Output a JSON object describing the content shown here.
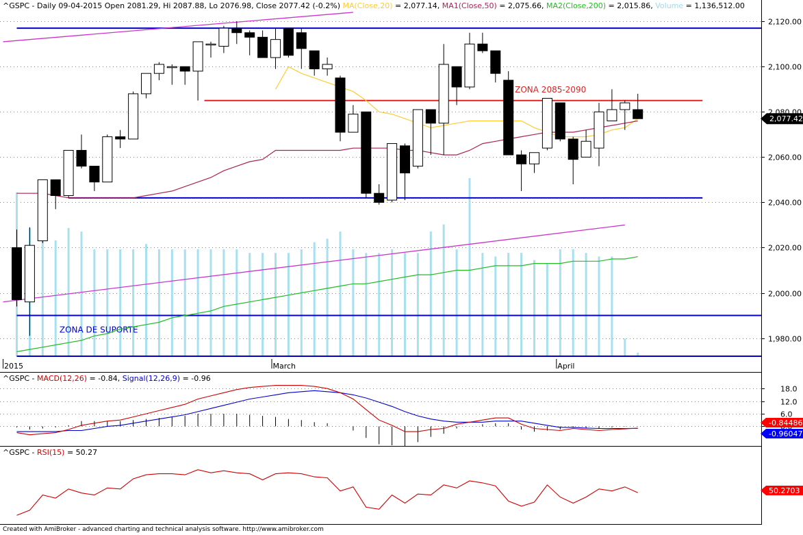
{
  "colors": {
    "background": "#ffffff",
    "axis": "#000000",
    "grid": "#808080",
    "ma20": "#ffcc33",
    "ma50": "#aa2255",
    "ma200": "#22bb22",
    "volume": "#a8e0f0",
    "volume_label": "#a0d8ef",
    "resistance": "#dd2222",
    "support_blue": "#0000cc",
    "channel": "#cc33cc",
    "macd": "#cc0000",
    "signal": "#0000cc",
    "rsi": "#cc0000",
    "histogram": "#000000",
    "price_tag": "#000000",
    "macd_tag": "#ff0000",
    "signal_tag": "#0000ff",
    "rsi_tag": "#ff0000"
  },
  "header": {
    "main": {
      "prefix": "^GSPC - Daily 09-04-2015 Open 2081.29, Hi 2087.88, Lo 2076.98, Close 2077.42 (-0.2%) ",
      "ma20_label": "MA(Close,20)",
      "ma20_value": " = 2,077.14, ",
      "ma50_label": "MA1(Close,50)",
      "ma50_value": " = 2,075.66, ",
      "ma200_label": "MA2(Close,200)",
      "ma200_value": " = 2,015.86, ",
      "volume_label": "Volume",
      "volume_value": " = 1,136,512.00"
    },
    "macd": {
      "prefix": "^GSPC - ",
      "macd_label": "MACD(12,26)",
      "macd_value": " = -0.84, ",
      "signal_label": "Signal(12,26,9)",
      "signal_value": " = -0.96"
    },
    "rsi": {
      "prefix": "^GSPC - ",
      "rsi_label": "RSI(15)",
      "rsi_value": " = 50.27"
    }
  },
  "footer": "Created with AmiBroker - advanced charting and technical analysis software. http://www.amibroker.com",
  "chart_data": [
    {
      "type": "candlestick",
      "name": "^GSPC Daily",
      "ylim": [
        1972,
        2124
      ],
      "y_ticks": [
        1980,
        2000,
        2020,
        2040,
        2060,
        2080,
        2100,
        2120
      ],
      "y_tick_labels": [
        "1,980.00",
        "2,000.00",
        "2,020.00",
        "2,040.00",
        "2,060.00",
        "2,080.00",
        "2,100.00",
        "2,120.00"
      ],
      "x_labels": [
        {
          "index": 0,
          "label": "2015"
        },
        {
          "index": 20,
          "label": "March"
        },
        {
          "index": 42,
          "label": "April"
        }
      ],
      "last_price_label": "2,077.42",
      "ohlc": [
        [
          2020,
          2028,
          1994,
          1997
        ],
        [
          1996,
          2029,
          1981,
          2021
        ],
        [
          2023,
          2050,
          2022,
          2050
        ],
        [
          2050,
          2050,
          2037,
          2043
        ],
        [
          2043,
          2063,
          2042,
          2063
        ],
        [
          2063,
          2070,
          2055,
          2056
        ],
        [
          2056,
          2056,
          2045,
          2049
        ],
        [
          2049,
          2070,
          2049,
          2069
        ],
        [
          2069,
          2072,
          2064,
          2068
        ],
        [
          2068,
          2089,
          2068,
          2088
        ],
        [
          2088,
          2097,
          2086,
          2097
        ],
        [
          2097,
          2102,
          2094,
          2101
        ],
        [
          2100,
          2101,
          2092,
          2100
        ],
        [
          2100,
          2100,
          2092,
          2098
        ],
        [
          2098,
          2111,
          2085,
          2111
        ],
        [
          2110,
          2111,
          2104,
          2110
        ],
        [
          2109,
          2118,
          2106,
          2117
        ],
        [
          2117,
          2120,
          2110,
          2115
        ],
        [
          2115,
          2116,
          2105,
          2113
        ],
        [
          2113,
          2116,
          2104,
          2104
        ],
        [
          2104,
          2117,
          2099,
          2112
        ],
        [
          2117,
          2117,
          2104,
          2105
        ],
        [
          2115,
          2117,
          2099,
          2108
        ],
        [
          2107,
          2107,
          2096,
          2099
        ],
        [
          2099,
          2104,
          2096,
          2101
        ],
        [
          2095,
          2096,
          2067,
          2071
        ],
        [
          2071,
          2083,
          2071,
          2079
        ],
        [
          2080,
          2080,
          2042,
          2044
        ],
        [
          2044,
          2048,
          2039,
          2040
        ],
        [
          2041,
          2066,
          2040,
          2066
        ],
        [
          2065,
          2066,
          2041,
          2053
        ],
        [
          2056,
          2080,
          2055,
          2081
        ],
        [
          2081,
          2081,
          2061,
          2075
        ],
        [
          2075,
          2110,
          2061,
          2101
        ],
        [
          2100,
          2100,
          2083,
          2091
        ],
        [
          2091,
          2115,
          2090,
          2110
        ],
        [
          2110,
          2115,
          2106,
          2107
        ],
        [
          2107,
          2107,
          2093,
          2097
        ],
        [
          2094,
          2098,
          2061,
          2061
        ],
        [
          2061,
          2063,
          2045,
          2057
        ],
        [
          2057,
          2062,
          2053,
          2062
        ],
        [
          2064,
          2086,
          2063,
          2086
        ],
        [
          2084,
          2084,
          2067,
          2068
        ],
        [
          2068,
          2069,
          2048,
          2059
        ],
        [
          2060,
          2072,
          2060,
          2067
        ],
        [
          2064,
          2084,
          2056,
          2080
        ],
        [
          2076,
          2090,
          2076,
          2081
        ],
        [
          2081,
          2085,
          2072,
          2084
        ],
        [
          2081,
          2088,
          2077,
          2077
        ]
      ],
      "series": [
        {
          "name": "MA(Close,20)",
          "values": [
            null,
            null,
            null,
            null,
            null,
            null,
            null,
            null,
            null,
            null,
            null,
            null,
            null,
            null,
            null,
            null,
            null,
            null,
            null,
            null,
            2090,
            2100,
            2097,
            2095,
            2093,
            2091,
            2089,
            2085,
            2080,
            2079,
            2077,
            2075,
            2073,
            2074,
            2075,
            2076,
            2076,
            2076,
            2076,
            2076,
            2073,
            2071,
            2069,
            2069,
            2069,
            2070,
            2072,
            2073,
            2077
          ]
        },
        {
          "name": "MA1(Close,50)",
          "values": [
            2044,
            2044,
            2044,
            2043,
            2042,
            2042,
            2042,
            2042,
            2042,
            2042,
            2043,
            2044,
            2045,
            2047,
            2049,
            2051,
            2054,
            2056,
            2058,
            2059,
            2063,
            2063,
            2063,
            2063,
            2063,
            2063,
            2064,
            2064,
            2064,
            2064,
            2063,
            2063,
            2062,
            2061,
            2061,
            2063,
            2066,
            2067,
            2068,
            2069,
            2070,
            2071,
            2071,
            2071,
            2072,
            2073,
            2074,
            2075,
            2076
          ]
        },
        {
          "name": "MA2(Close,200)",
          "values": [
            1974,
            1975,
            1976,
            1977,
            1978,
            1979,
            1981,
            1982,
            1984,
            1985,
            1986,
            1987,
            1989,
            1990,
            1991,
            1992,
            1994,
            1995,
            1996,
            1997,
            1998,
            1999,
            2000,
            2001,
            2002,
            2003,
            2004,
            2004,
            2005,
            2006,
            2007,
            2008,
            2008,
            2009,
            2010,
            2010,
            2011,
            2012,
            2012,
            2012,
            2013,
            2013,
            2013,
            2014,
            2014,
            2014,
            2015,
            2015,
            2016
          ]
        },
        {
          "name": "Volume",
          "values": [
            0.92,
            0.72,
            0.72,
            0.65,
            0.72,
            0.7,
            0.6,
            0.6,
            0.6,
            0.6,
            0.63,
            0.6,
            0.6,
            0.6,
            0.6,
            0.6,
            0.6,
            0.6,
            0.58,
            0.58,
            0.58,
            0.58,
            0.6,
            0.64,
            0.66,
            0.7,
            0.6,
            0.58,
            0.58,
            0.6,
            0.58,
            0.58,
            0.7,
            0.74,
            0.6,
            1.0,
            0.58,
            0.56,
            0.58,
            0.58,
            0.54,
            0.52,
            0.6,
            0.6,
            0.58,
            0.56,
            0.56,
            0.1,
            0.02
          ]
        }
      ],
      "annotations": [
        {
          "text": "ZONA 2085-2090",
          "type": "hline",
          "y": 2085,
          "x_from": 14.5,
          "x_to": 53
        },
        {
          "type": "hline",
          "y": 2117,
          "x_from": 0,
          "x_to": 57
        },
        {
          "type": "hline",
          "y": 2042,
          "x_from": 4,
          "x_to": 53
        },
        {
          "text": "ZONA DE SUPORTE",
          "type": "hline",
          "y": 1990,
          "x_from": 0,
          "x_to": 57
        },
        {
          "type": "hline",
          "y": 1972,
          "x_from": 0,
          "x_to": 57
        },
        {
          "type": "trendline",
          "x1": 0,
          "y1": 2111,
          "x2": 26,
          "y2": 2124
        },
        {
          "type": "trendline",
          "x1": 0,
          "y1": 1996,
          "x2": 47,
          "y2": 2030
        }
      ]
    },
    {
      "type": "line",
      "name": "MACD",
      "ylim": [
        -9,
        21
      ],
      "y_ticks": [
        0,
        6,
        12,
        18
      ],
      "y_tick_labels": [
        "0.0",
        "6.0",
        "12.0",
        "18.0"
      ],
      "price_labels": {
        "macd": "-0.84486",
        "signal": "-0.960475"
      },
      "series": [
        {
          "name": "MACD(12,26)",
          "values": [
            -3,
            -4,
            -3.5,
            -3,
            -1.5,
            0.5,
            1.5,
            2.5,
            3,
            4.5,
            6,
            7.5,
            9,
            10.5,
            13,
            14.5,
            16,
            17.5,
            18.5,
            19,
            19.5,
            19.5,
            19.5,
            19,
            18,
            16,
            13,
            8,
            3,
            0.5,
            -2.5,
            -2.5,
            -1.5,
            -1,
            1,
            2,
            3,
            4,
            4,
            1,
            -1,
            -1.5,
            -2,
            -1,
            -1.5,
            -2,
            -1.5,
            -1.2,
            -0.84
          ]
        },
        {
          "name": "Signal(12,26,9)",
          "values": [
            -2.5,
            -2.5,
            -2.5,
            -2.5,
            -2,
            -2,
            -1,
            0,
            0.5,
            1.5,
            2.5,
            3.5,
            4.5,
            5.5,
            7,
            8.5,
            10,
            11.5,
            13,
            14,
            15,
            16,
            16.5,
            17,
            16.5,
            16,
            15,
            13.5,
            11.5,
            9.5,
            7,
            5,
            3.5,
            2.5,
            2,
            2,
            2,
            2.5,
            2.5,
            2.5,
            1.5,
            0.5,
            -0.5,
            -0.5,
            -0.8,
            -1,
            -1,
            -1,
            -0.96
          ]
        },
        {
          "name": "Histogram",
          "values": [
            -0.5,
            -1.5,
            -1,
            -0.5,
            0.5,
            2.5,
            2.5,
            2.5,
            2.5,
            3,
            3.5,
            4,
            4.5,
            5,
            6,
            6,
            6,
            6,
            5.5,
            5,
            4.5,
            3.5,
            3,
            2,
            1.5,
            0,
            -2,
            -5.5,
            -8.5,
            -9,
            -9.5,
            -7.5,
            -5,
            -3.5,
            -1,
            0,
            1,
            1.5,
            1.5,
            -1.5,
            -2.5,
            -2,
            -1.5,
            -0.5,
            -0.7,
            -1,
            -0.5,
            -0.2,
            0.1
          ]
        }
      ]
    },
    {
      "type": "line",
      "name": "RSI",
      "ylim": [
        20,
        85
      ],
      "price_labels": {
        "rsi": "50.2703"
      },
      "series": [
        {
          "name": "RSI(15)",
          "values": [
            28,
            33,
            48,
            45,
            54,
            50,
            48,
            55,
            54,
            64,
            68,
            69,
            69,
            68,
            73,
            70,
            72,
            70,
            69,
            63,
            69,
            70,
            69,
            66,
            65,
            52,
            56,
            36,
            34,
            48,
            40,
            49,
            48,
            58,
            55,
            62,
            60,
            57,
            42,
            37,
            41,
            58,
            46,
            40,
            46,
            54,
            52,
            56,
            50.27
          ]
        }
      ]
    }
  ]
}
